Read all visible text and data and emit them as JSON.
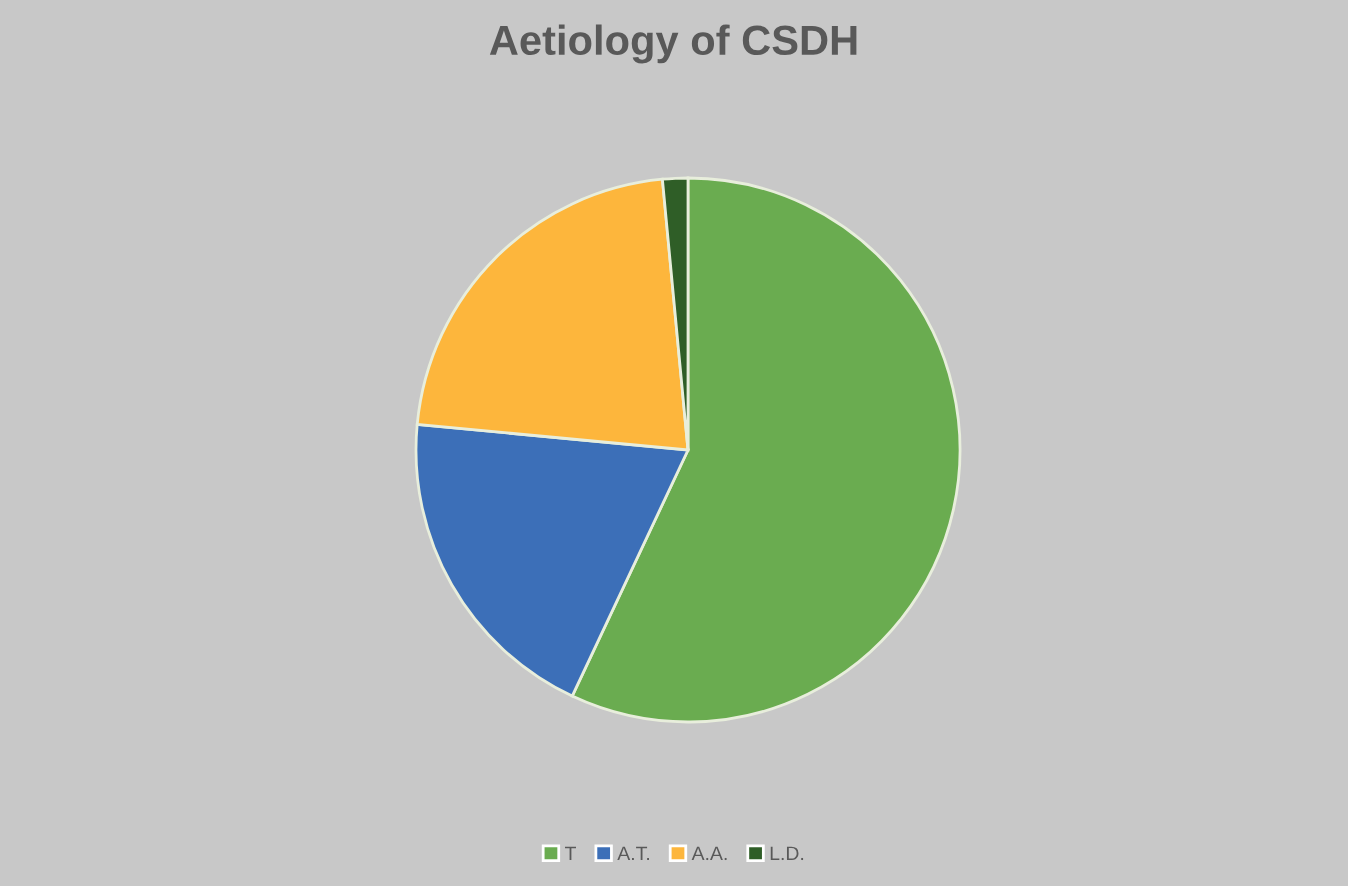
{
  "chart_data": {
    "type": "pie",
    "title": "Aetiology of CSDH",
    "categories": [
      "T",
      "A.T.",
      "A.A.",
      "L.D."
    ],
    "values": [
      57,
      19.5,
      22,
      1.5
    ],
    "colors": [
      "#6aac50",
      "#3c6fb8",
      "#fdb63c",
      "#2f5e27"
    ],
    "legend": "bottom"
  }
}
